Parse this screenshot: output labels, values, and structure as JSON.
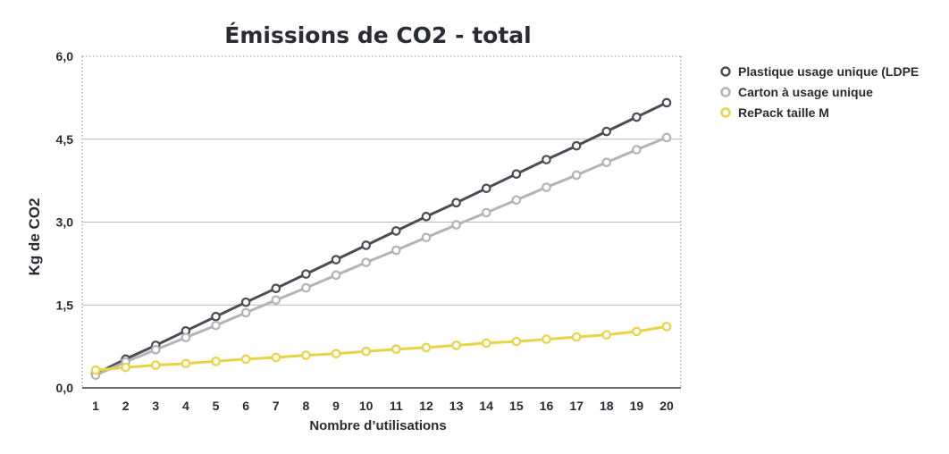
{
  "chart_data": {
    "type": "line",
    "title": "Émissions de CO2 - total",
    "xlabel": "Nombre d’utilisations",
    "ylabel": "Kg de CO2",
    "x": [
      1,
      2,
      3,
      4,
      5,
      6,
      7,
      8,
      9,
      10,
      11,
      12,
      13,
      14,
      15,
      16,
      17,
      18,
      19,
      20
    ],
    "ylim": [
      0,
      6
    ],
    "yticks": [
      0,
      1.5,
      3,
      4.5,
      6
    ],
    "ytick_labels": [
      "0,0",
      "1,5",
      "3,0",
      "4,5",
      "6,0"
    ],
    "grid": "horizontal",
    "legend_position": "top-right",
    "series": [
      {
        "name": "Plastique usage unique (LDPE",
        "color": "#4b4c55",
        "values": [
          0.25,
          0.52,
          0.77,
          1.03,
          1.29,
          1.55,
          1.8,
          2.06,
          2.32,
          2.58,
          2.84,
          3.1,
          3.35,
          3.61,
          3.87,
          4.13,
          4.38,
          4.64,
          4.9,
          5.16
        ]
      },
      {
        "name": "Carton à usage unique",
        "color": "#b4b4b7",
        "values": [
          0.23,
          0.47,
          0.69,
          0.91,
          1.13,
          1.36,
          1.59,
          1.81,
          2.04,
          2.27,
          2.49,
          2.72,
          2.95,
          3.17,
          3.4,
          3.63,
          3.85,
          4.08,
          4.31,
          4.53
        ]
      },
      {
        "name": "RePack taille M",
        "color": "#e9d448",
        "values": [
          0.32,
          0.37,
          0.41,
          0.44,
          0.48,
          0.52,
          0.55,
          0.59,
          0.62,
          0.66,
          0.7,
          0.73,
          0.77,
          0.81,
          0.84,
          0.88,
          0.92,
          0.96,
          1.02,
          1.11
        ]
      }
    ]
  }
}
